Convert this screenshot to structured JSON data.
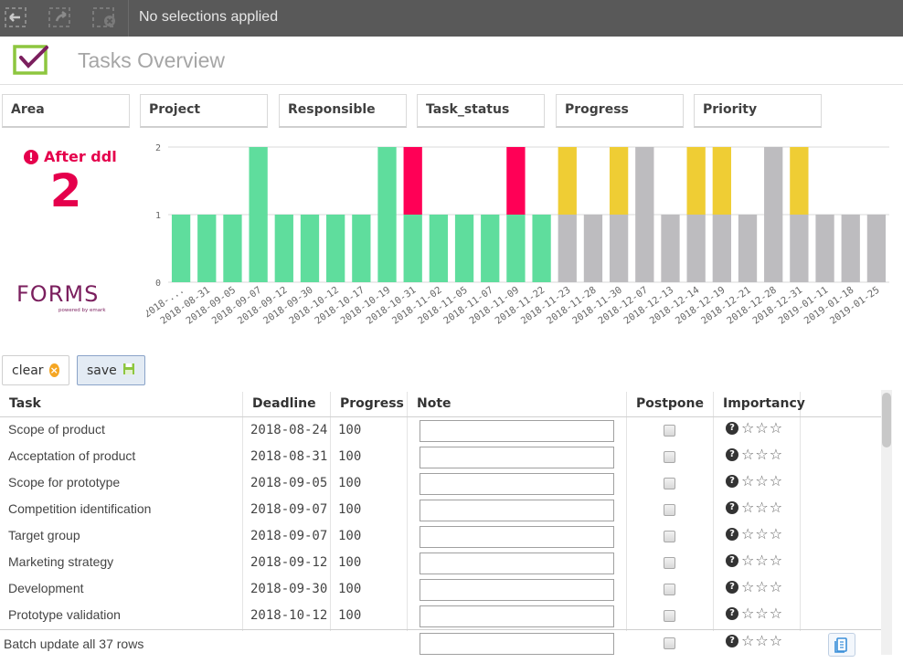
{
  "toolbar": {
    "selection_text": "No selections applied",
    "icons": [
      "back-selection-icon",
      "forward-selection-icon",
      "clear-selections-icon"
    ]
  },
  "header": {
    "title": "Tasks Overview"
  },
  "filters": [
    "Area",
    "Project",
    "Responsible",
    "Task_status",
    "Progress",
    "Priority"
  ],
  "kpi": {
    "label": "After ddl",
    "value": "2",
    "color": "#e5004c"
  },
  "brand": {
    "logo_text": "FORMS",
    "tagline": "powered by emark"
  },
  "buttons": {
    "clear_label": "clear",
    "save_label": "save"
  },
  "colors": {
    "green": "#5fdd9d",
    "red": "#ff0056",
    "yellow": "#efcd34",
    "gray": "#bdbcbf"
  },
  "chart_data": {
    "type": "bar",
    "stacked": true,
    "categories": [
      "2018-...",
      "2018-08-31",
      "2018-09-05",
      "2018-09-07",
      "2018-09-12",
      "2018-09-30",
      "2018-10-12",
      "2018-10-17",
      "2018-10-19",
      "2018-10-31",
      "2018-11-02",
      "2018-11-05",
      "2018-11-07",
      "2018-11-09",
      "2018-11-22",
      "2018-11-23",
      "2018-11-28",
      "2018-11-30",
      "2018-12-07",
      "2018-12-13",
      "2018-12-14",
      "2018-12-19",
      "2018-12-21",
      "2018-12-28",
      "2018-12-31",
      "2019-01-11",
      "2019-01-18",
      "2019-01-25"
    ],
    "series": [
      {
        "color": "#5fdd9d",
        "values": [
          1,
          1,
          1,
          2,
          1,
          1,
          1,
          1,
          2,
          1,
          1,
          1,
          1,
          1,
          1,
          0,
          0,
          0,
          0,
          0,
          0,
          0,
          0,
          0,
          0,
          0,
          0,
          0
        ]
      },
      {
        "color": "#ff0056",
        "values": [
          0,
          0,
          0,
          0,
          0,
          0,
          0,
          0,
          0,
          1,
          0,
          0,
          0,
          1,
          0,
          0,
          0,
          0,
          0,
          0,
          0,
          0,
          0,
          0,
          0,
          0,
          0,
          0
        ]
      },
      {
        "color": "#bdbcbf",
        "values": [
          0,
          0,
          0,
          0,
          0,
          0,
          0,
          0,
          0,
          0,
          0,
          0,
          0,
          0,
          0,
          1,
          1,
          1,
          2,
          1,
          1,
          1,
          1,
          2,
          1,
          1,
          1,
          1
        ]
      },
      {
        "color": "#efcd34",
        "values": [
          0,
          0,
          0,
          0,
          0,
          0,
          0,
          0,
          0,
          0,
          0,
          0,
          0,
          0,
          0,
          1,
          0,
          1,
          0,
          0,
          1,
          1,
          0,
          0,
          1,
          0,
          0,
          0
        ]
      }
    ],
    "yticks": [
      0,
      1,
      2
    ],
    "ylim": [
      0,
      2
    ],
    "grid": true
  },
  "table": {
    "columns": [
      "Task",
      "Deadline",
      "Progress",
      "Note",
      "Postpone",
      "Importancy"
    ],
    "rows": [
      {
        "task": "Scope of product",
        "deadline": "2018-08-24",
        "progress": "100"
      },
      {
        "task": "Acceptation of product",
        "deadline": "2018-08-31",
        "progress": "100"
      },
      {
        "task": "Scope for prototype",
        "deadline": "2018-09-05",
        "progress": "100"
      },
      {
        "task": "Competition identification",
        "deadline": "2018-09-07",
        "progress": "100"
      },
      {
        "task": "Target group",
        "deadline": "2018-09-07",
        "progress": "100"
      },
      {
        "task": "Marketing strategy",
        "deadline": "2018-09-12",
        "progress": "100"
      },
      {
        "task": "Development",
        "deadline": "2018-09-30",
        "progress": "100"
      },
      {
        "task": "Prototype validation",
        "deadline": "2018-10-12",
        "progress": "100"
      }
    ],
    "batch_label": "Batch update all 37 rows"
  }
}
